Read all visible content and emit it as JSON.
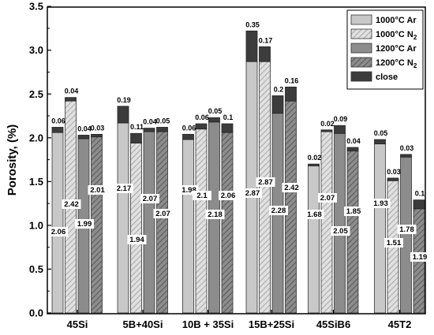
{
  "chart_data": {
    "type": "bar",
    "ylabel": "Porosity, (%)",
    "xlabel": "",
    "ylim": [
      0.0,
      3.5
    ],
    "yticks": [
      "0.0",
      "0.5",
      "1.0",
      "1.5",
      "2.0",
      "2.5",
      "3.0",
      "3.5"
    ],
    "categories": [
      "45Si",
      "5B+40Si",
      "10B + 35Si",
      "15B+25Si",
      "45SiB6",
      "45T2"
    ],
    "series": [
      {
        "name": "1000°C Ar",
        "color": "#c8c8c8",
        "pattern": "solid",
        "open": [
          2.06,
          2.17,
          1.98,
          2.87,
          1.68,
          1.93
        ],
        "open_labels": [
          "2.06",
          "2.17",
          "1.98",
          "2.87",
          "1.68",
          "1.93"
        ],
        "close": [
          0.06,
          0.19,
          0.06,
          0.35,
          0.02,
          0.05
        ],
        "close_labels": [
          "0.06",
          "0.19",
          "0.06",
          "0.35",
          "0.02",
          "0.05"
        ]
      },
      {
        "name": "1000°C N",
        "name_sub": "2",
        "color": "#c8c8c8",
        "pattern": "hatch",
        "open": [
          2.42,
          1.94,
          2.1,
          2.87,
          2.07,
          1.51
        ],
        "open_labels": [
          "2.42",
          "1.94",
          "2.1",
          "2.87",
          "2.07",
          "1.51"
        ],
        "close": [
          0.04,
          0.11,
          0.06,
          0.17,
          0.02,
          0.03
        ],
        "close_labels": [
          "0.04",
          "0.11",
          "0.06",
          "0.17",
          "0.02",
          "0.03"
        ]
      },
      {
        "name": "1200°C Ar",
        "color": "#8c8c8c",
        "pattern": "solid",
        "open": [
          1.99,
          2.07,
          2.18,
          2.28,
          2.05,
          1.78
        ],
        "open_labels": [
          "1.99",
          "2.07",
          "2.18",
          "2.28",
          "2.05",
          "1.78"
        ],
        "close": [
          0.04,
          0.04,
          0.05,
          0.2,
          0.09,
          0.03
        ],
        "close_labels": [
          "0.04",
          "0.04",
          "0.05",
          "0.2",
          "0.09",
          "0.03"
        ]
      },
      {
        "name": "1200°C N",
        "name_sub": "2",
        "color": "#8c8c8c",
        "pattern": "hatch",
        "open": [
          2.01,
          2.07,
          2.06,
          2.42,
          1.85,
          1.19
        ],
        "open_labels": [
          "2.01",
          "2.07",
          "2.06",
          "2.42",
          "1.85",
          "1.19"
        ],
        "close": [
          0.03,
          0.05,
          0.1,
          0.16,
          0.04,
          0.1
        ],
        "close_labels": [
          "0.03",
          "0.05",
          "0.1",
          "0.16",
          "0.04",
          "0.1"
        ]
      }
    ],
    "close_series": {
      "name": "close",
      "color": "#3c3c3c"
    },
    "legend": "top-right",
    "grid": false
  }
}
